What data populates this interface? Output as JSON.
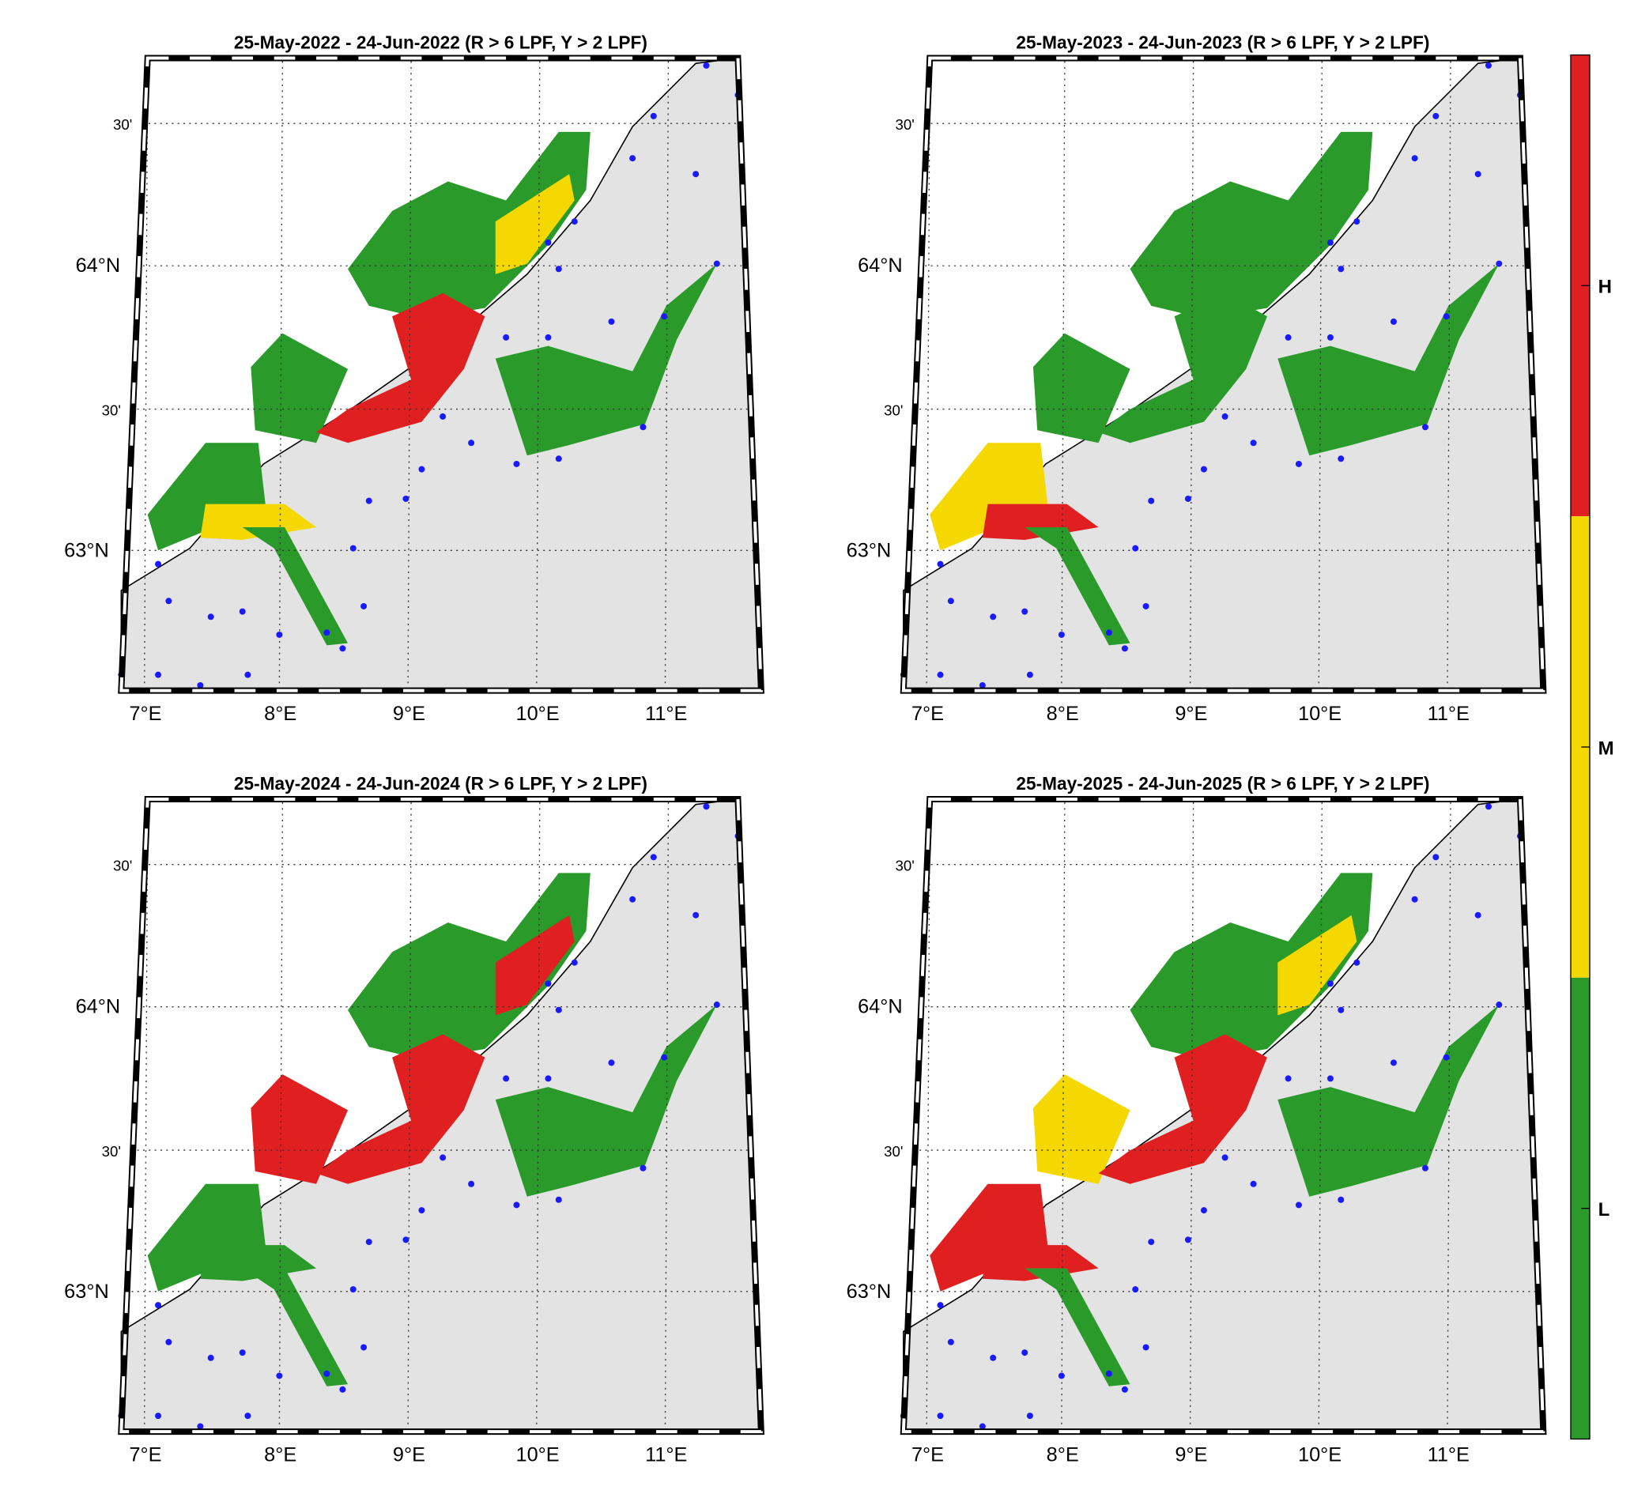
{
  "panels": [
    {
      "title": "25-May-2022  - 24-Jun-2022  (R > 6 LPF, Y > 2 LPF)",
      "lat_labels": [
        "30'",
        "64°N",
        "30'",
        "63°N"
      ],
      "lon_labels": [
        "7°E",
        "8°E",
        "9°E",
        "10°E",
        "11°E"
      ]
    },
    {
      "title": "25-May-2023  - 24-Jun-2023  (R > 6 LPF, Y > 2 LPF)",
      "lat_labels": [
        "30'",
        "64°N",
        "30'",
        "63°N"
      ],
      "lon_labels": [
        "7°E",
        "8°E",
        "9°E",
        "10°E",
        "11°E"
      ]
    },
    {
      "title": "25-May-2024  - 24-Jun-2024  (R > 6 LPF, Y > 2 LPF)",
      "lat_labels": [
        "30'",
        "64°N",
        "30'",
        "63°N"
      ],
      "lon_labels": [
        "7°E",
        "8°E",
        "9°E",
        "10°E",
        "11°E"
      ]
    },
    {
      "title": "25-May-2025  - 24-Jun-2025  (R > 6 LPF, Y > 2 LPF)",
      "lat_labels": [
        "30'",
        "64°N",
        "30'",
        "63°N"
      ],
      "lon_labels": [
        "7°E",
        "8°E",
        "9°E",
        "10°E",
        "11°E"
      ]
    }
  ],
  "colorbar": {
    "labels": [
      "H",
      "M",
      "L"
    ],
    "colors": [
      "#e02020",
      "#f5d800",
      "#2a9a2a"
    ]
  }
}
